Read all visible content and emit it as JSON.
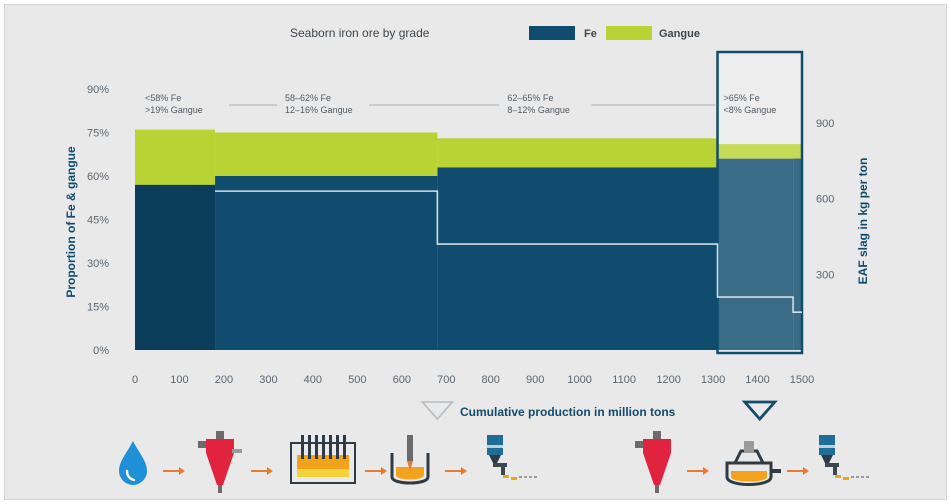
{
  "colors": {
    "fe": "#0f4c6e",
    "fe_dark": "#0c3e5c",
    "gangue": "#b9d334",
    "slag_line": "#d6dde2",
    "highlight": "#0f4c6e",
    "process_orange": "#e97a2e",
    "process_red": "#e2233f",
    "process_blue": "#1f8fd8"
  },
  "chart_data": {
    "type": "area",
    "title": "Seaborn iron ore by grade",
    "xlabel": "Cumulative production in million tons",
    "ylabel_left": "Proportion of Fe & gangue",
    "ylabel_right": "EAF slag in kg per ton",
    "xlim": [
      0,
      1500
    ],
    "ylim_left": [
      0,
      100
    ],
    "ylim_right": [
      0,
      1150
    ],
    "x_ticks": [
      "0",
      "100",
      "200",
      "300",
      "400",
      "500",
      "600",
      "700",
      "800",
      "900",
      "1000",
      "1100",
      "1200",
      "1300",
      "1400",
      "1500"
    ],
    "x_tick_values": [
      0,
      100,
      200,
      300,
      400,
      500,
      600,
      700,
      800,
      900,
      1000,
      1100,
      1200,
      1300,
      1400,
      1500
    ],
    "y_left_ticks": [
      "0%",
      "15%",
      "30%",
      "45%",
      "60%",
      "75%",
      "90%"
    ],
    "y_left_tick_values": [
      0,
      15,
      30,
      45,
      60,
      75,
      90
    ],
    "y_right_ticks": [
      "300",
      "600",
      "900"
    ],
    "y_right_tick_values": [
      300,
      600,
      900
    ],
    "legend": [
      {
        "name": "Fe",
        "color": "#0f4c6e"
      },
      {
        "name": "Gangue",
        "color": "#b9d334"
      }
    ],
    "series": [
      {
        "name": "Fe",
        "segments": [
          {
            "x0": 0,
            "x1": 180,
            "value": 57
          },
          {
            "x0": 180,
            "x1": 680,
            "value": 60
          },
          {
            "x0": 680,
            "x1": 1310,
            "value": 63
          },
          {
            "x0": 1310,
            "x1": 1480,
            "value": 66
          },
          {
            "x0": 1480,
            "x1": 1500,
            "value": 68
          }
        ]
      },
      {
        "name": "Gangue",
        "segments": [
          {
            "x0": 0,
            "x1": 180,
            "value": 19
          },
          {
            "x0": 180,
            "x1": 680,
            "value": 15
          },
          {
            "x0": 680,
            "x1": 1310,
            "value": 10
          },
          {
            "x0": 1310,
            "x1": 1500,
            "value": 5
          }
        ]
      }
    ],
    "slag": [
      [
        180,
        630
      ],
      [
        680,
        630
      ],
      [
        680,
        420
      ],
      [
        1310,
        420
      ],
      [
        1310,
        210
      ],
      [
        1480,
        210
      ],
      [
        1480,
        150
      ],
      [
        1500,
        150
      ]
    ],
    "bands": [
      {
        "x0": 0,
        "x1": 180,
        "line1": "<58% Fe",
        "line2": ">19% Gangue"
      },
      {
        "x0": 180,
        "x1": 680,
        "line1": "58–62% Fe",
        "line2": "12–16% Gangue"
      },
      {
        "x0": 680,
        "x1": 1310,
        "line1": "62–65% Fe",
        "line2": "8–12% Gangue"
      },
      {
        "x0": 1310,
        "x1": 1500,
        "line1": ">65% Fe",
        "line2": "<8% Gangue"
      }
    ],
    "highlight_range": [
      1310,
      1500
    ],
    "markers": [
      {
        "x": 680,
        "style": "outline"
      },
      {
        "x": 1405,
        "style": "bold"
      }
    ]
  },
  "process_chains": {
    "left": [
      "water-drop",
      "hydrocyclone",
      "pellet-furnace",
      "blast-furnace",
      "ladle-caster"
    ],
    "right": [
      "hydrocyclone",
      "electric-arc-furnace",
      "ladle-caster"
    ]
  }
}
